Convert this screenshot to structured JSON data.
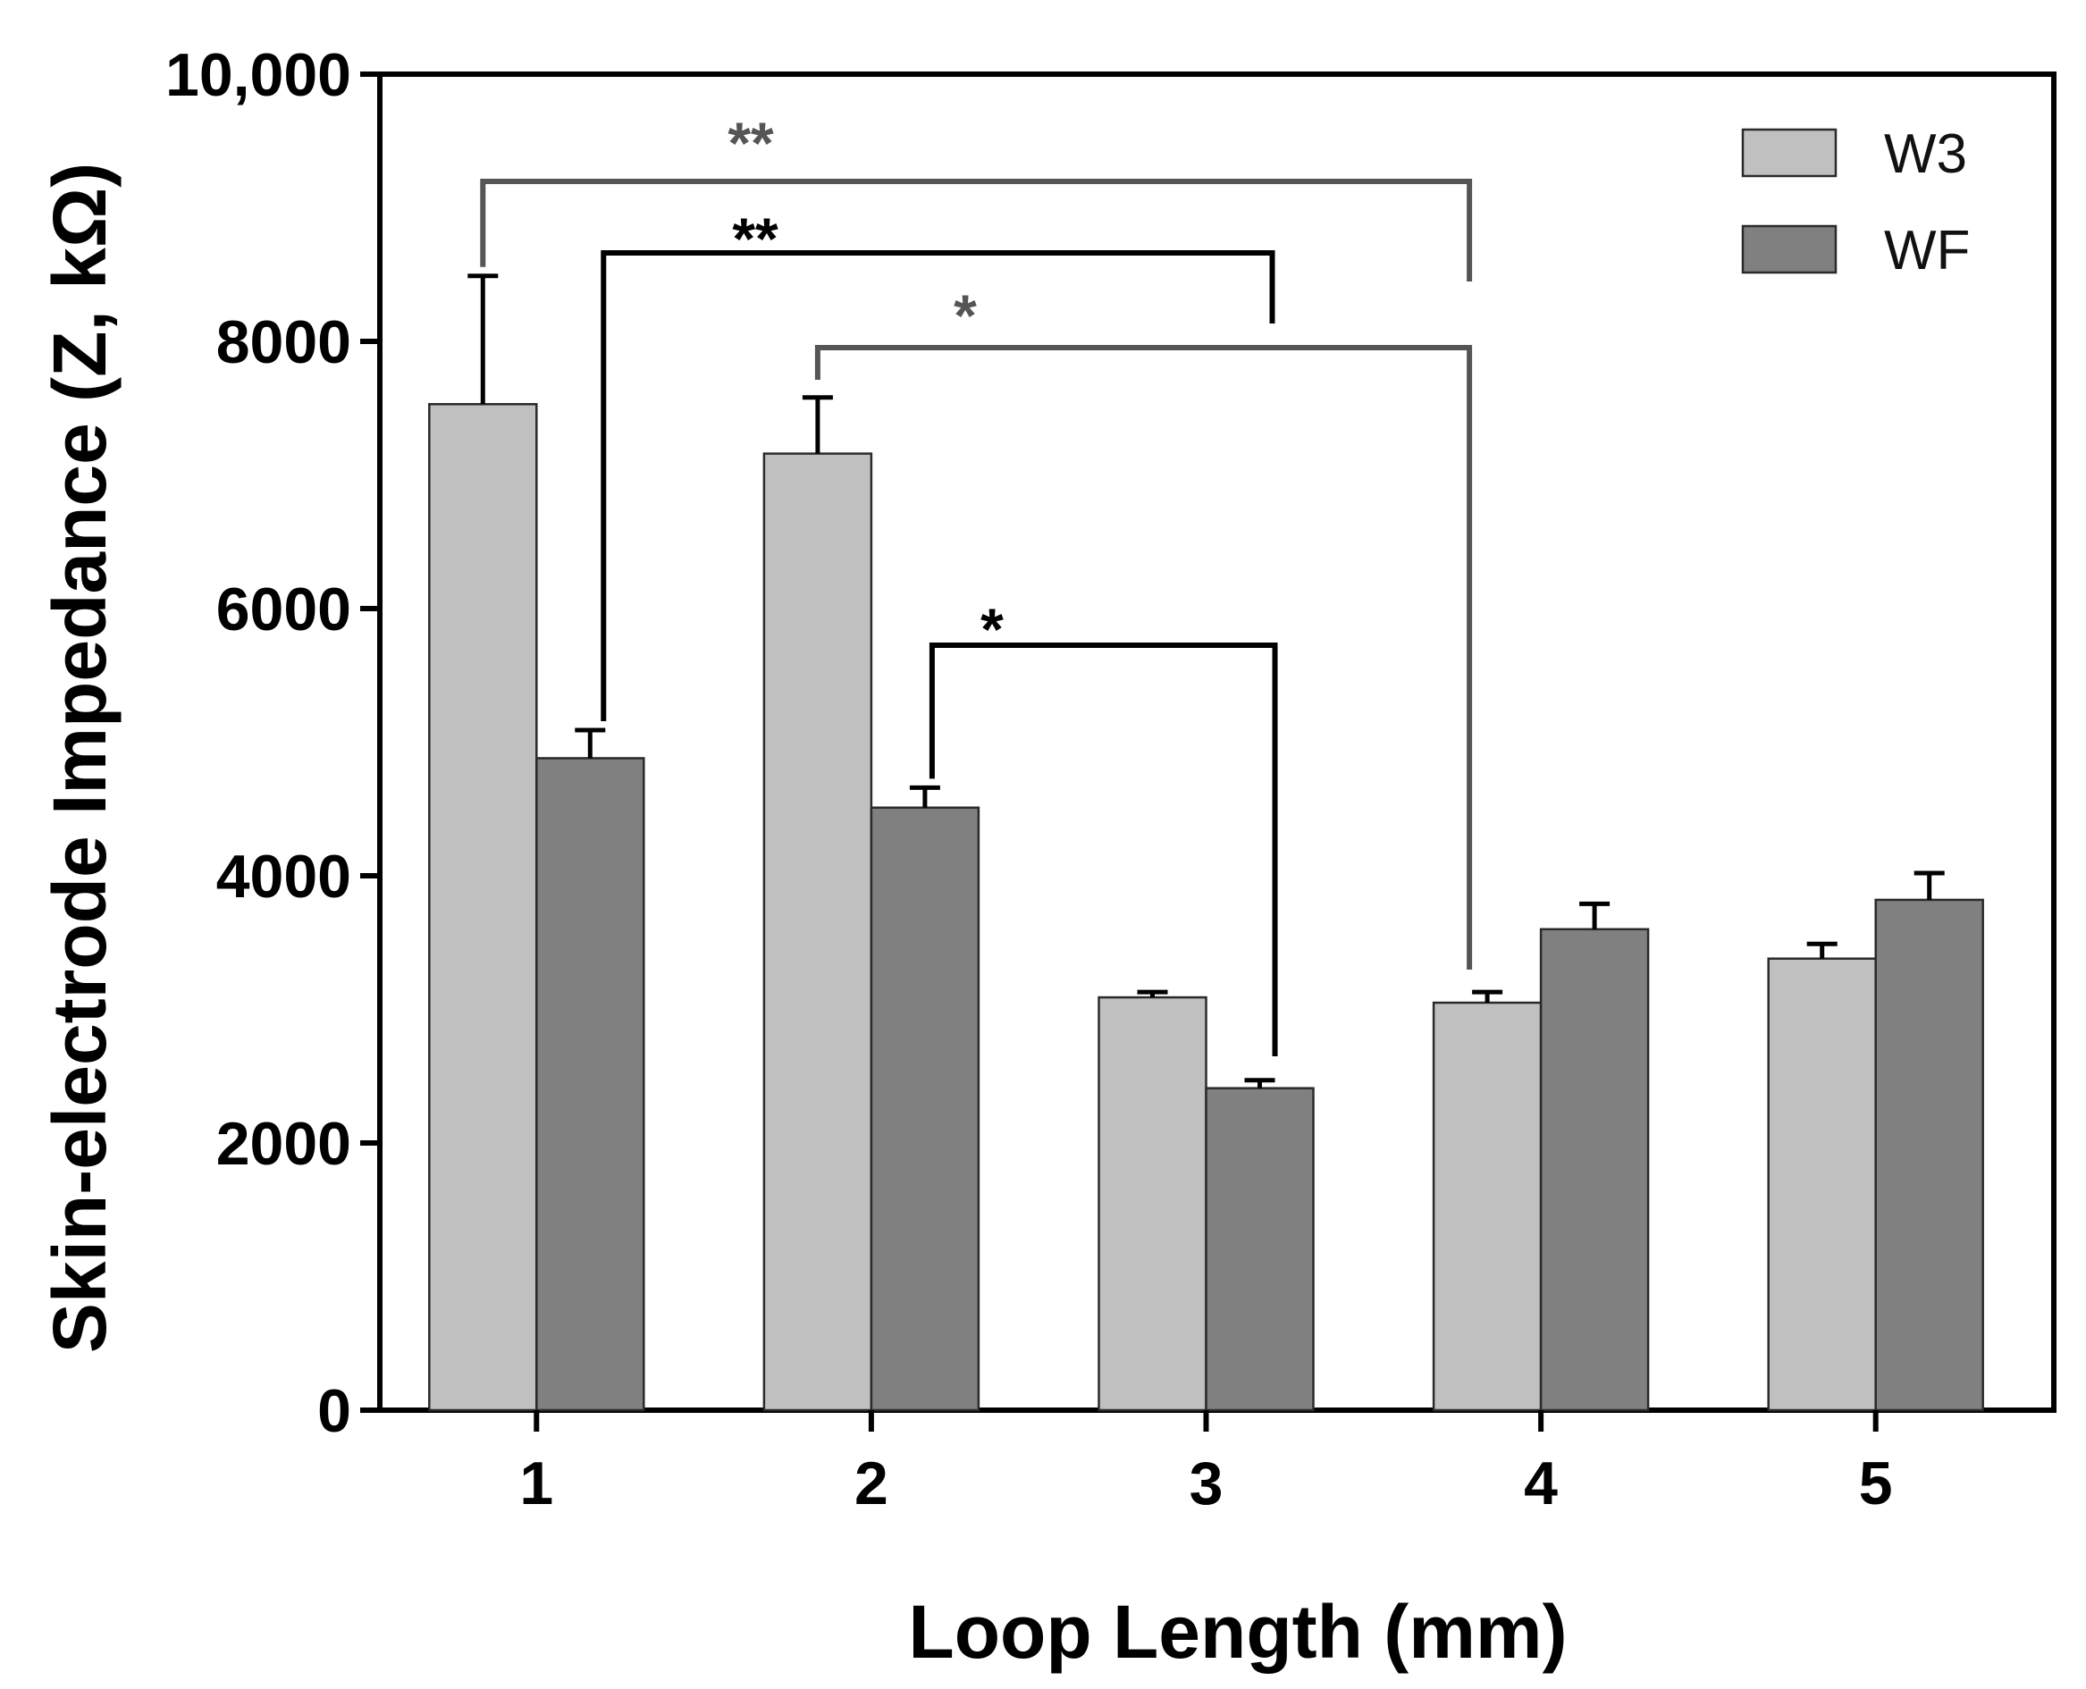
{
  "chart_data": {
    "type": "bar",
    "title": "",
    "xlabel": "Loop Length (mm)",
    "ylabel": "Skin-electrode Impedance (Z, kΩ)",
    "categories": [
      "1",
      "2",
      "3",
      "4",
      "5"
    ],
    "ylim": [
      0,
      10000
    ],
    "yticks": [
      0,
      2000,
      4000,
      6000,
      8000,
      10000
    ],
    "ytick_labels": [
      "0",
      "2000",
      "4000",
      "6000",
      "8000",
      "10,000"
    ],
    "series": [
      {
        "name": "W3",
        "color": "#c0c0c0",
        "values": [
          7530,
          7160,
          3090,
          3050,
          3380
        ],
        "errors": [
          960,
          420,
          40,
          80,
          110
        ]
      },
      {
        "name": "WF",
        "color": "#808080",
        "values": [
          4880,
          4510,
          2410,
          3600,
          3820
        ],
        "errors": [
          210,
          150,
          60,
          190,
          200
        ]
      }
    ],
    "legend_position": "top-right",
    "significance": [
      {
        "label": "**",
        "color": "#555555",
        "from": {
          "category": "1",
          "series": "W3"
        },
        "to": {
          "category": "4",
          "series": "W3"
        }
      },
      {
        "label": "**",
        "color": "#000000",
        "from": {
          "category": "1",
          "series": "WF"
        },
        "to": {
          "category": "3",
          "series": "WF"
        }
      },
      {
        "label": "*",
        "color": "#555555",
        "from": {
          "category": "2",
          "series": "W3"
        },
        "to": {
          "category": "4",
          "series": "W3"
        }
      },
      {
        "label": "*",
        "color": "#000000",
        "from": {
          "category": "2",
          "series": "WF"
        },
        "to": {
          "category": "3",
          "series": "WF"
        }
      }
    ]
  }
}
